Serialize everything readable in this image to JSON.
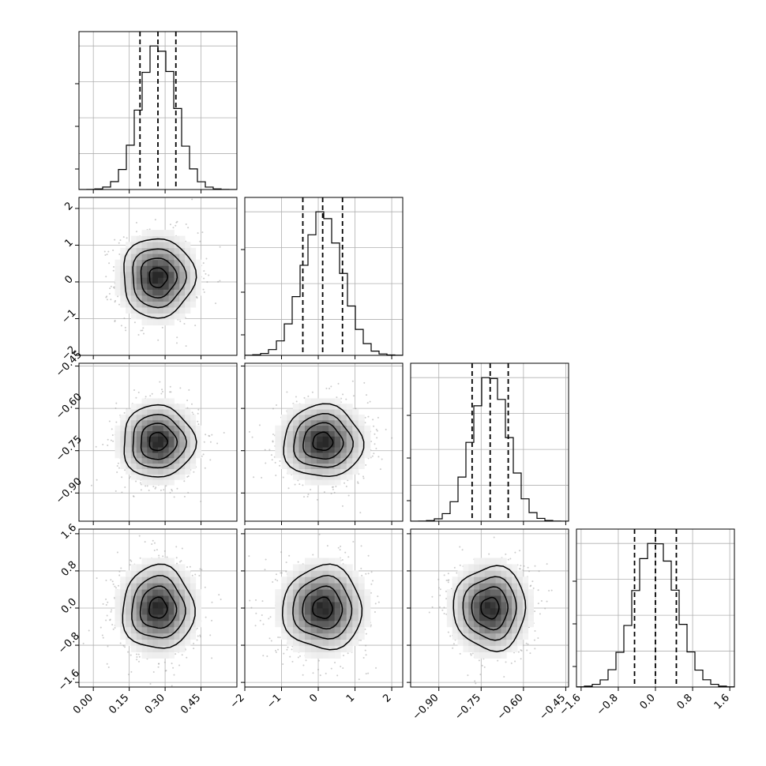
{
  "figure": {
    "type": "corner-plot",
    "background": "#ffffff"
  },
  "style": {
    "grid_color": "#b0b0b0",
    "line_color": "#000000",
    "scatter_color": "#9a9a9a"
  },
  "chart_data": {
    "type": "heatmap",
    "variant": "corner",
    "title": "",
    "grid": true,
    "parameters": [
      {
        "index": 0,
        "center": 0.27,
        "sigma": 0.075,
        "quantiles": [
          0.195,
          0.27,
          0.345
        ],
        "range": [
          -0.06,
          0.6
        ],
        "ticks": [
          0.0,
          0.15,
          0.3,
          0.45
        ],
        "tick_labels": [
          "0.00",
          "0.15",
          "0.30",
          "0.45"
        ]
      },
      {
        "index": 1,
        "center": 0.12,
        "sigma": 0.54,
        "quantiles": [
          -0.42,
          0.12,
          0.66
        ],
        "range": [
          -2.0,
          2.3
        ],
        "ticks": [
          -2,
          -1,
          0,
          1,
          2
        ],
        "tick_labels": [
          "−2",
          "−1",
          "0",
          "1",
          "2"
        ]
      },
      {
        "index": 2,
        "center": -0.718,
        "sigma": 0.064,
        "quantiles": [
          -0.782,
          -0.718,
          -0.654
        ],
        "range": [
          -1.0,
          -0.44
        ],
        "ticks": [
          -0.9,
          -0.75,
          -0.6,
          -0.45
        ],
        "tick_labels": [
          "−0.90",
          "−0.75",
          "−0.60",
          "−0.45"
        ]
      },
      {
        "index": 3,
        "center": 0.0,
        "sigma": 0.45,
        "quantiles": [
          -0.45,
          0.0,
          0.45
        ],
        "range": [
          -1.7,
          1.7
        ],
        "ticks": [
          -1.6,
          -0.8,
          0.0,
          0.8,
          1.6
        ],
        "tick_labels": [
          "−1.6",
          "−0.8",
          "0.0",
          "0.8",
          "1.6"
        ]
      }
    ]
  }
}
